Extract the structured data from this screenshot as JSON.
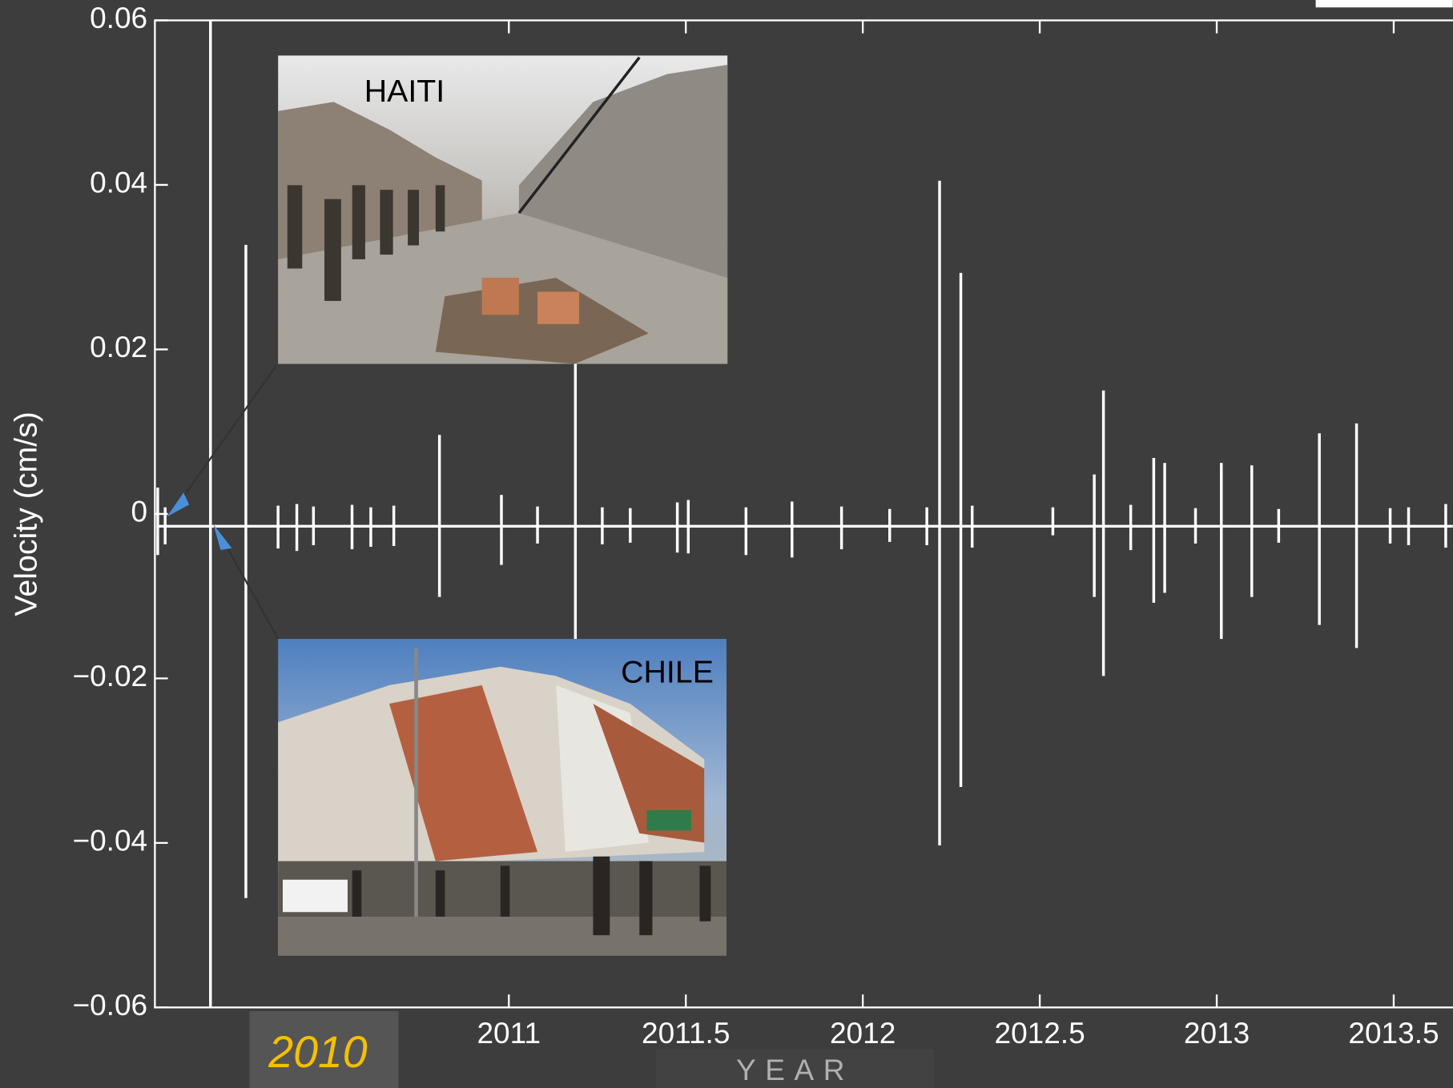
{
  "chart_data": {
    "type": "spike",
    "y_label": "Velocity (cm/s)",
    "x_label": "YEAR",
    "annotations": {
      "start_year": "2010",
      "top_photo": "HAITI",
      "bottom_photo": "CHILE"
    },
    "xlim": [
      2010,
      2013.667
    ],
    "ylim": [
      -0.06,
      0.06
    ],
    "xticks": [
      2011,
      2011.5,
      2012,
      2012.5,
      2013,
      2013.5
    ],
    "yticks": [
      {
        "value": -0.06,
        "label": "−0.06"
      },
      {
        "value": -0.04,
        "label": "−0.04"
      },
      {
        "value": -0.02,
        "label": "−0.02"
      },
      0,
      0.02,
      0.04,
      0.06
    ],
    "grid": false,
    "color": "#ffffff",
    "baseline": -0.0015,
    "x": [
      2010.008,
      2010.029,
      2010.157,
      2010.257,
      2010.348,
      2010.401,
      2010.448,
      2010.557,
      2010.61,
      2010.675,
      2010.804,
      2010.979,
      2011.081,
      2011.188,
      2011.264,
      2011.343,
      2011.476,
      2011.507,
      2011.67,
      2011.8,
      2011.94,
      2012.076,
      2012.181,
      2012.217,
      2012.277,
      2012.309,
      2012.537,
      2012.654,
      2012.68,
      2012.757,
      2012.822,
      2012.853,
      2012.94,
      2013.013,
      2013.099,
      2013.175,
      2013.29,
      2013.395,
      2013.49,
      2013.542,
      2013.647
    ],
    "high": [
      0.0032,
      0.0008,
      0.06,
      0.0327,
      0.001,
      0.0012,
      0.0009,
      0.0011,
      0.0008,
      0.001,
      0.0096,
      0.0023,
      0.0009,
      0.055,
      0.0008,
      0.0007,
      0.0014,
      0.0017,
      0.0008,
      0.0015,
      0.0009,
      0.0006,
      0.0008,
      0.0405,
      0.0293,
      0.001,
      0.0008,
      0.0048,
      0.015,
      0.0011,
      0.0068,
      0.0062,
      0.0007,
      0.0062,
      0.0059,
      0.0006,
      0.0098,
      0.011,
      0.0007,
      0.0008,
      0.0012
    ],
    "low": [
      -0.005,
      -0.0037,
      -0.06,
      -0.0467,
      -0.0042,
      -0.0045,
      -0.0038,
      -0.0043,
      -0.004,
      -0.0039,
      -0.0101,
      -0.0062,
      -0.0036,
      -0.0152,
      -0.0037,
      -0.0035,
      -0.0047,
      -0.0048,
      -0.005,
      -0.0053,
      -0.0043,
      -0.0034,
      -0.0038,
      -0.0403,
      -0.0332,
      -0.0041,
      -0.0026,
      -0.0101,
      -0.0197,
      -0.0044,
      -0.0108,
      -0.0096,
      -0.0036,
      -0.0152,
      -0.0101,
      -0.0035,
      -0.0135,
      -0.0163,
      -0.0036,
      -0.0038,
      -0.0041
    ]
  }
}
